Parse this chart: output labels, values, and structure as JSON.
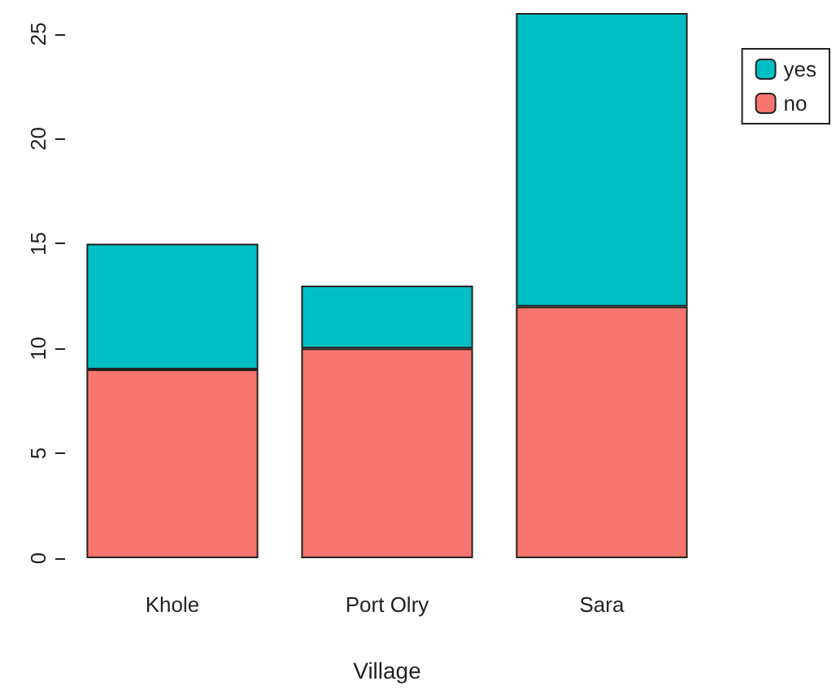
{
  "chart_data": {
    "type": "bar",
    "xlabel": "Village",
    "categories": [
      "Khole",
      "Port Olry",
      "Sara"
    ],
    "stacked": true,
    "series": [
      {
        "name": "no",
        "color": "#f8766d",
        "values": [
          9,
          10,
          12
        ]
      },
      {
        "name": "yes",
        "color": "#00bfc4",
        "values": [
          6,
          3,
          14
        ]
      }
    ],
    "ylim": [
      0,
      26
    ],
    "yticks": [
      0,
      5,
      10,
      15,
      20,
      25
    ],
    "grid": false,
    "legend": "top right"
  }
}
